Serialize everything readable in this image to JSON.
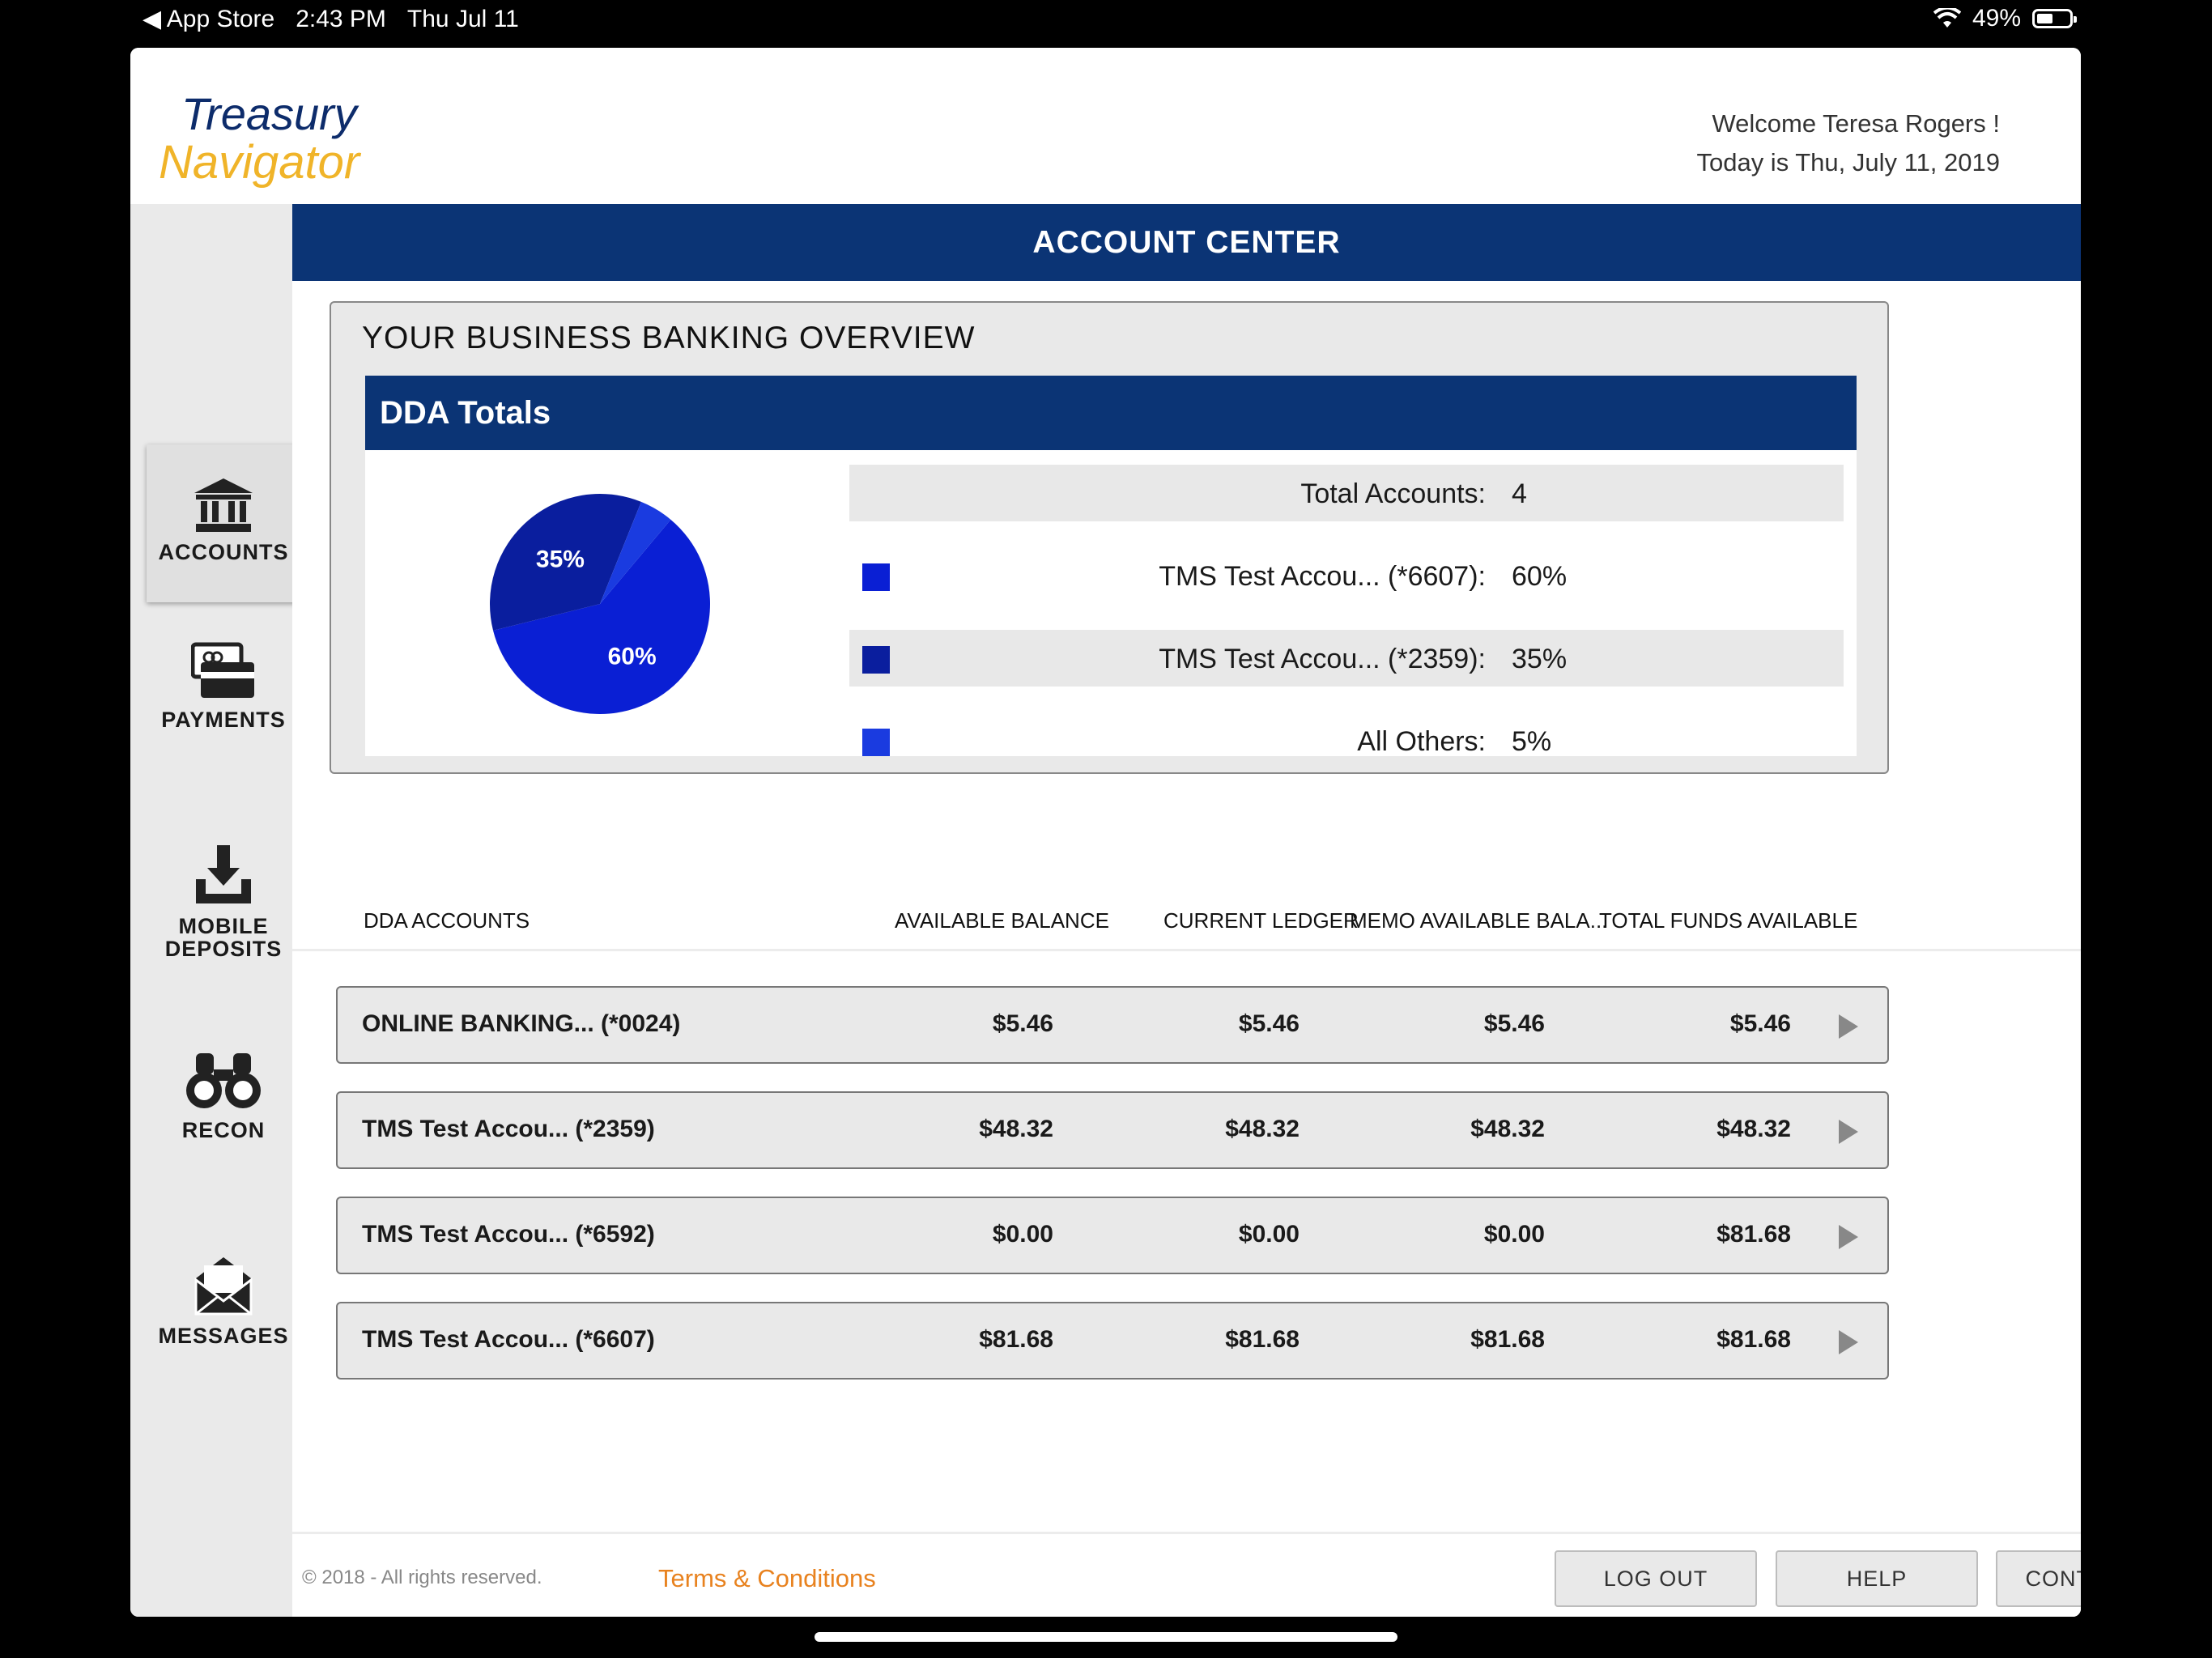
{
  "status_bar": {
    "back_app": "App Store",
    "time": "2:43 PM",
    "date": "Thu Jul 11",
    "battery": "49%",
    "battery_level": 0.49
  },
  "brand": {
    "line1": "Treasury",
    "line2": "Navigator",
    "accent": "#f0b429",
    "primary": "#0b3475"
  },
  "welcome": {
    "greeting": "Welcome Teresa Rogers !",
    "today": "Today is Thu, July 11, 2019"
  },
  "sidebar": {
    "items": [
      {
        "label": "ACCOUNTS",
        "icon": "bank-icon",
        "active": true
      },
      {
        "label": "PAYMENTS",
        "icon": "payment-card-icon"
      },
      {
        "label_line1": "MOBILE",
        "label_line2": "DEPOSITS",
        "icon": "download-tray-icon"
      },
      {
        "label": "RECON",
        "icon": "binoculars-icon"
      },
      {
        "label": "MESSAGES",
        "icon": "envelope-icon"
      }
    ]
  },
  "page_title": "ACCOUNT CENTER",
  "overview": {
    "title": "YOUR BUSINESS BANKING OVERVIEW",
    "panel_title": "DDA Totals",
    "total_label": "Total Accounts:",
    "total_value": "4",
    "legend": [
      {
        "name": "TMS Test Accou... (*6607):",
        "pct": "60%",
        "color": "#0a1fd4"
      },
      {
        "name": "TMS Test Accou... (*2359):",
        "pct": "35%",
        "color": "#0a1e9e"
      },
      {
        "name": "All Others:",
        "pct": "5%",
        "color": "#1a3be0"
      }
    ]
  },
  "chart_data": {
    "type": "pie",
    "categories": [
      "TMS Test Accou... (*6607)",
      "TMS Test Accou... (*2359)",
      "All Others"
    ],
    "values": [
      60,
      35,
      5
    ],
    "labels": [
      "60%",
      "35%",
      ""
    ],
    "colors": [
      "#0a1fd4",
      "#0a1e9e",
      "#1a3be0"
    ]
  },
  "table": {
    "columns": [
      "DDA ACCOUNTS",
      "AVAILABLE BALANCE",
      "CURRENT LEDGER",
      "MEMO AVAILABLE BALA...",
      "TOTAL FUNDS AVAILABLE"
    ],
    "rows": [
      {
        "name": "ONLINE BANKING... (*0024)",
        "available": "$5.46",
        "ledger": "$5.46",
        "memo": "$5.46",
        "total": "$5.46"
      },
      {
        "name": "TMS Test Accou... (*2359)",
        "available": "$48.32",
        "ledger": "$48.32",
        "memo": "$48.32",
        "total": "$48.32"
      },
      {
        "name": "TMS Test Accou... (*6592)",
        "available": "$0.00",
        "ledger": "$0.00",
        "memo": "$0.00",
        "total": "$81.68"
      },
      {
        "name": "TMS Test Accou... (*6607)",
        "available": "$81.68",
        "ledger": "$81.68",
        "memo": "$81.68",
        "total": "$81.68"
      }
    ]
  },
  "footer": {
    "copyright": "© 2018 - All rights reserved.",
    "terms": "Terms & Conditions",
    "logout": "LOG OUT",
    "help": "HELP",
    "contact": "CONTACT US"
  }
}
